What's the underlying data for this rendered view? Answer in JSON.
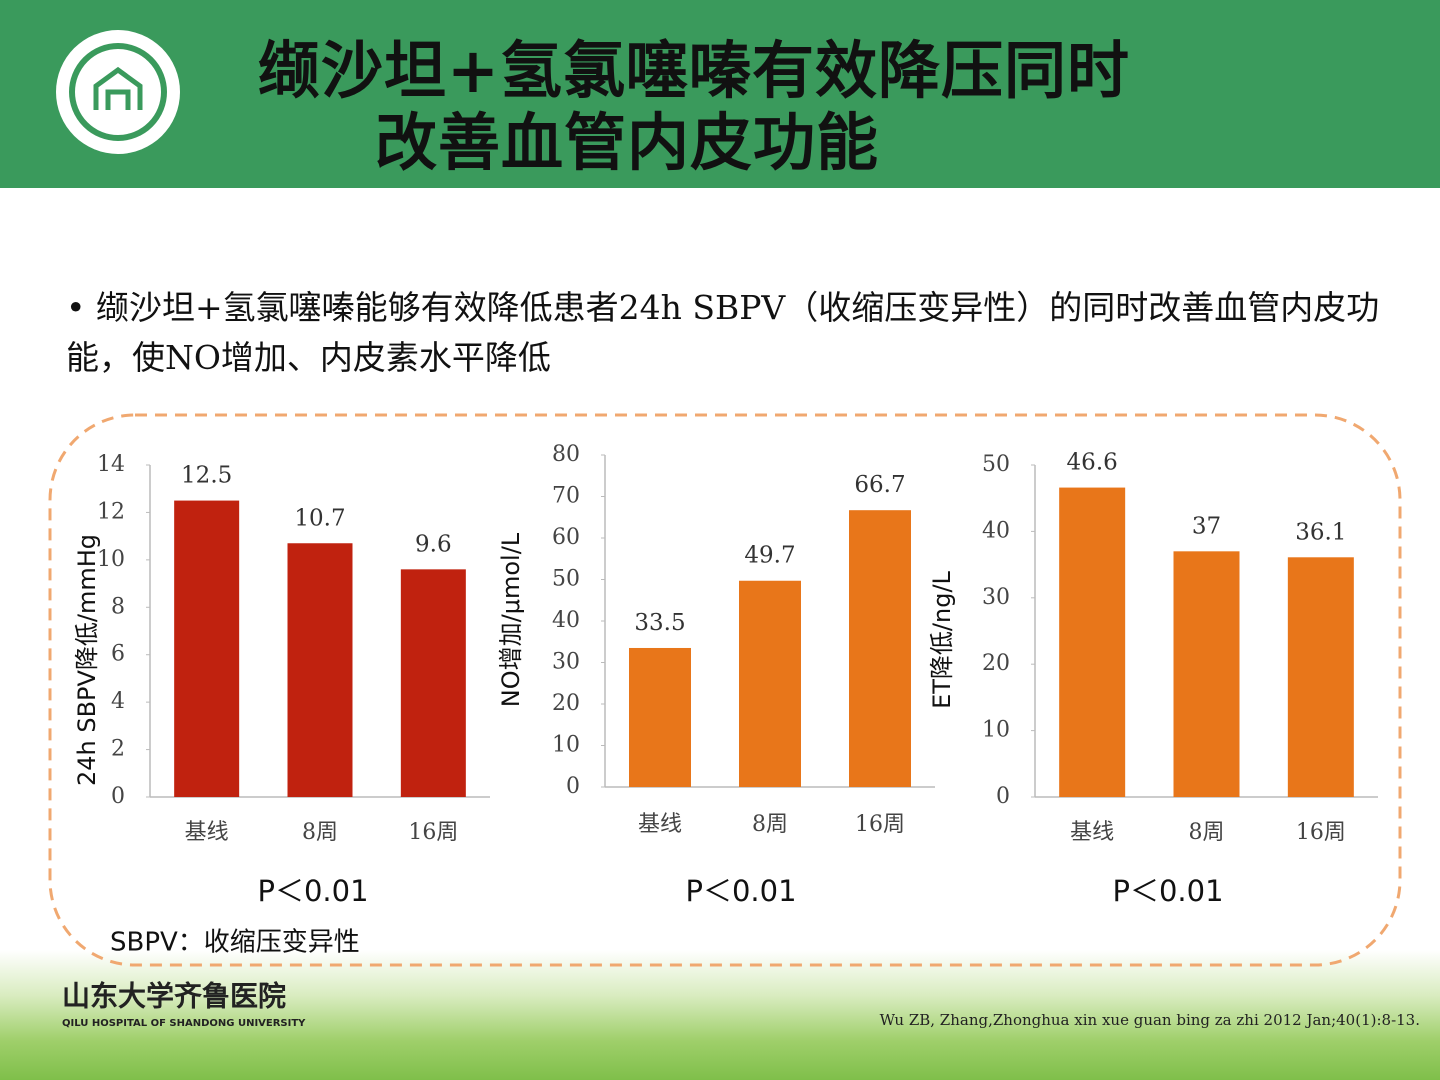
{
  "header": {
    "title_line1": "缬沙坦+氢氯噻嗪有效降压同时",
    "title_line2": "改善血管内皮功能"
  },
  "bullet": "缬沙坦+氢氯噻嗪能够有效降低患者24h SBPV（收缩压变异性）的同时改善血管内皮功能，使NO增加、内皮素水平降低",
  "chart_data": [
    {
      "type": "bar",
      "y_label": "24h SBPV降低/mmHg",
      "categories": [
        "基线",
        "8周",
        "16周"
      ],
      "values": [
        12.5,
        10.7,
        9.6
      ],
      "color": "#c0220f",
      "ylim": [
        0,
        14
      ],
      "yticks": [
        0,
        2,
        4,
        6,
        8,
        10,
        12,
        14
      ],
      "annotation": "P＜0.01"
    },
    {
      "type": "bar",
      "y_label": "NO增加/μmol/L",
      "categories": [
        "基线",
        "8周",
        "16周"
      ],
      "values": [
        33.5,
        49.7,
        66.7
      ],
      "color": "#e8761a",
      "ylim": [
        0,
        80
      ],
      "yticks": [
        0,
        10,
        20,
        30,
        40,
        50,
        60,
        70,
        80
      ],
      "annotation": "P＜0.01"
    },
    {
      "type": "bar",
      "y_label": "ET降低/ng/L",
      "categories": [
        "基线",
        "8周",
        "16周"
      ],
      "values": [
        46.6,
        37,
        36.1
      ],
      "color": "#e8761a",
      "ylim": [
        0,
        50
      ],
      "yticks": [
        0,
        10,
        20,
        30,
        40,
        50
      ],
      "annotation": "P＜0.01"
    }
  ],
  "footnote": "SBPV：收缩压变异性",
  "logo_text": "山东大学齐鲁医院",
  "logo_subtext": "QILU HOSPITAL OF SHANDONG UNIVERSITY",
  "citation": "Wu ZB, Zhang,Zhonghua xin xue guan bing za zhi 2012 Jan;40(1):8-13."
}
